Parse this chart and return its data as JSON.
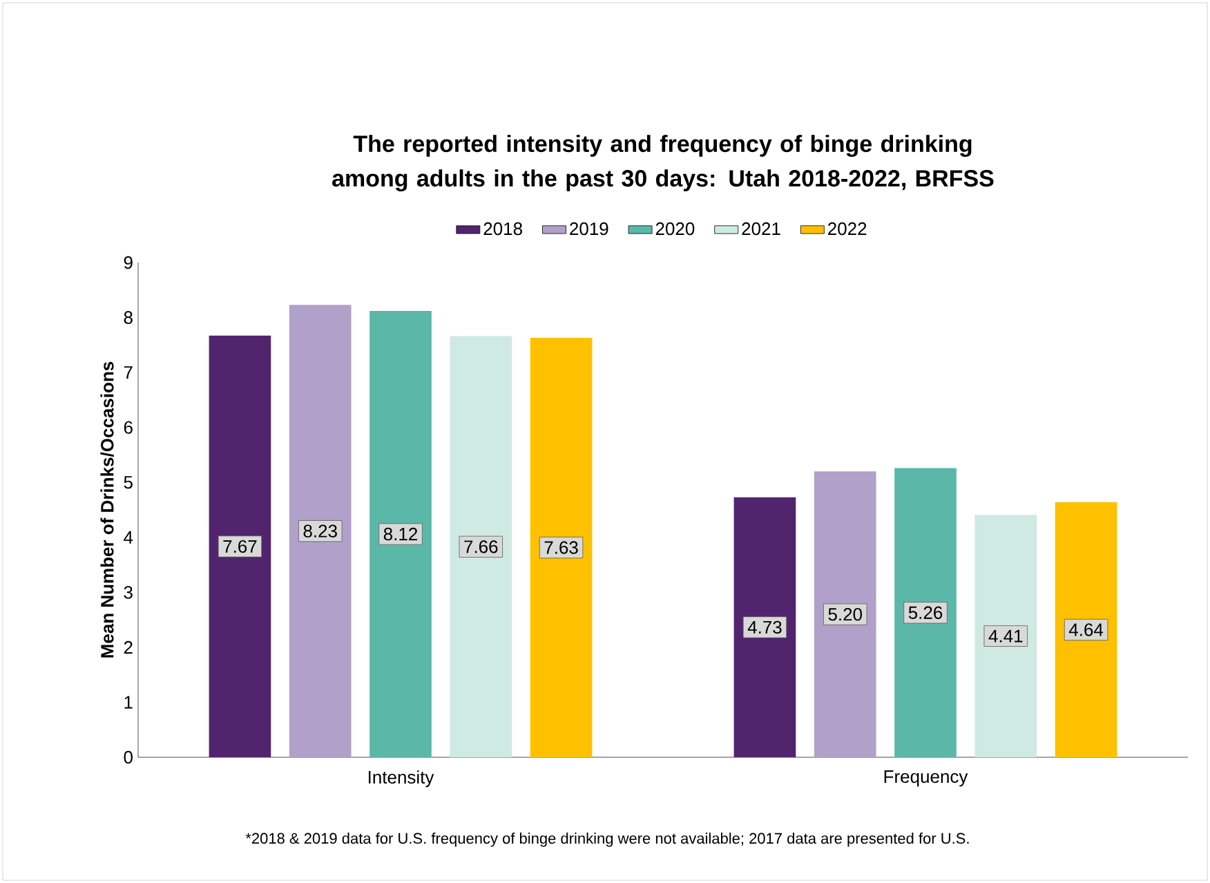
{
  "chart_data": {
    "type": "bar",
    "title": "The reported intensity and frequency of binge drinking among adults in the past 30 days: Utah 2018-2022, BRFSS",
    "ylabel": "Mean Number of Drinks/Occasions",
    "categories": [
      "Intensity",
      "Frequency"
    ],
    "series": [
      {
        "name": "2018",
        "color": "#52246e",
        "values": [
          7.67,
          4.73
        ],
        "value_labels": [
          "7.67",
          "4.73"
        ]
      },
      {
        "name": "2019",
        "color": "#b1a0c9",
        "values": [
          8.23,
          5.2
        ],
        "value_labels": [
          "8.23",
          "5.20"
        ]
      },
      {
        "name": "2020",
        "color": "#5bb8a9",
        "values": [
          8.12,
          5.26
        ],
        "value_labels": [
          "8.12",
          "5.26"
        ]
      },
      {
        "name": "2021",
        "color": "#cfe9e3",
        "values": [
          7.66,
          4.41
        ],
        "value_labels": [
          "7.66",
          "4.41"
        ]
      },
      {
        "name": "2022",
        "color": "#ffc000",
        "values": [
          7.63,
          4.64
        ],
        "value_labels": [
          "7.63",
          "4.64"
        ]
      }
    ],
    "ylim": [
      0,
      9
    ],
    "yticks": [
      0,
      1,
      2,
      3,
      4,
      5,
      6,
      7,
      8,
      9
    ],
    "legend": "top",
    "annotations": [
      "*2018 & 2019 data for U.S. frequency of binge drinking were not available; 2017 data are presented for U.S."
    ]
  }
}
